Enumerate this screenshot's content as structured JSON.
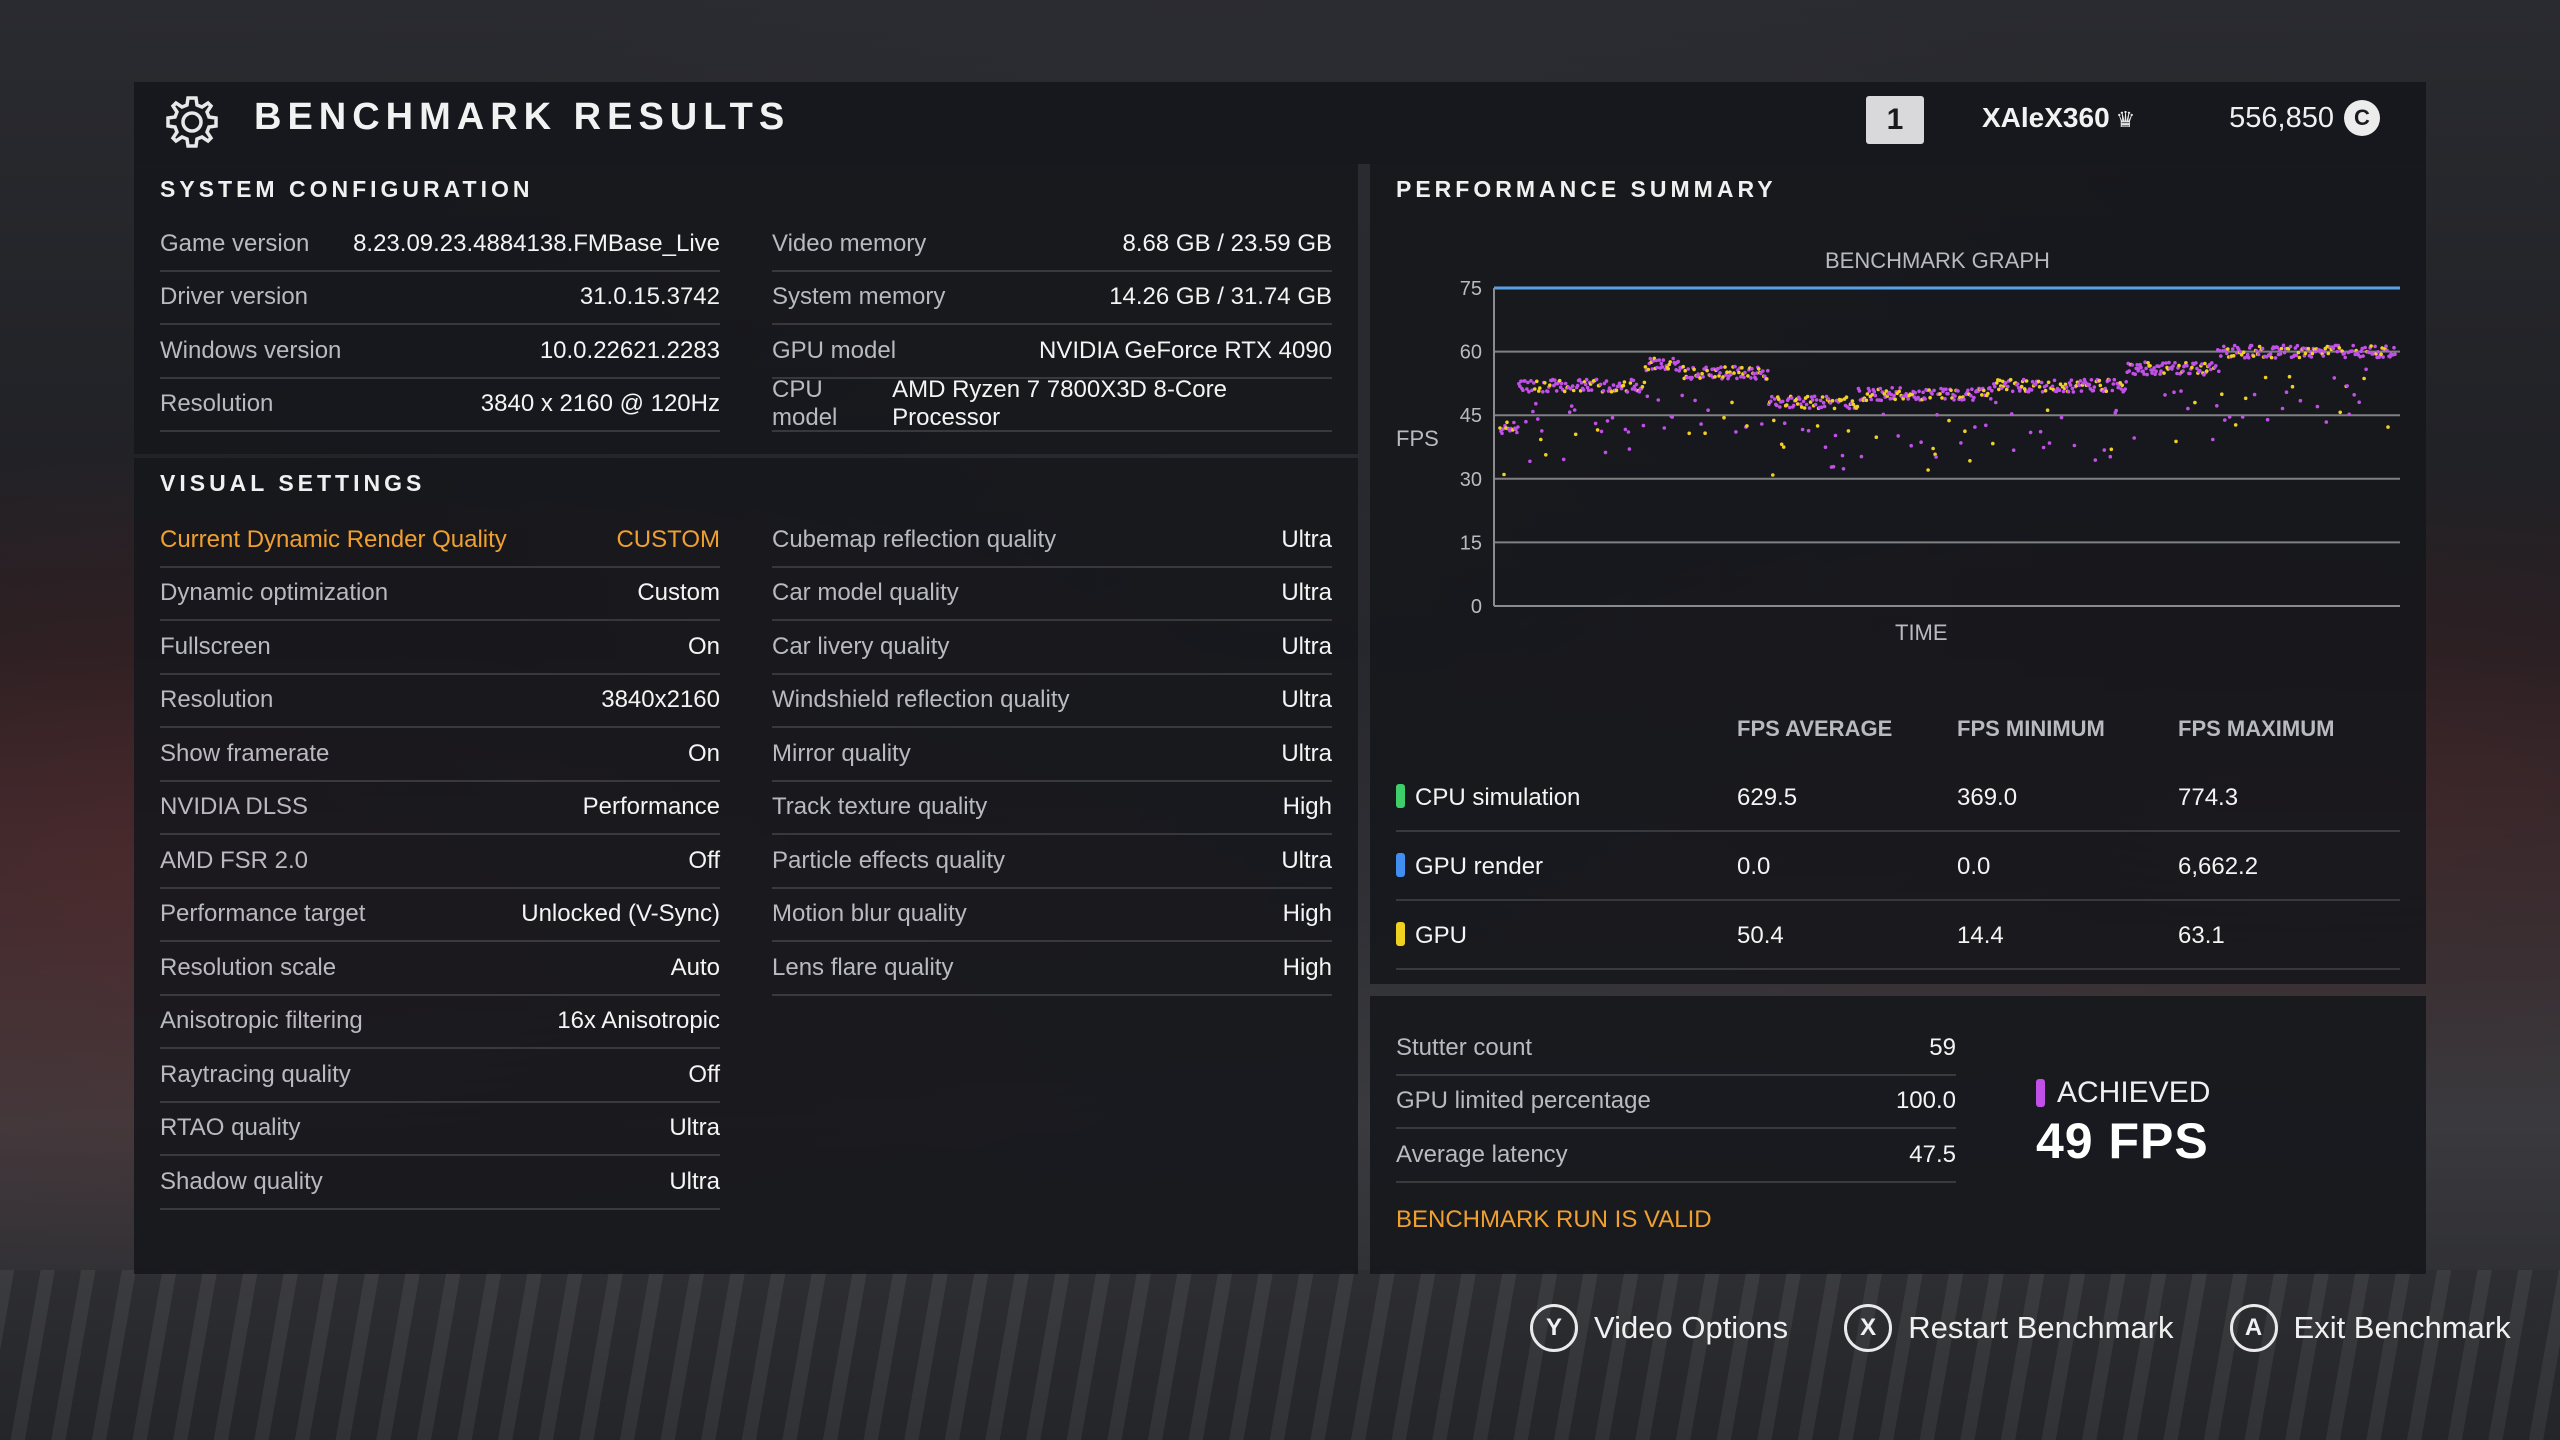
{
  "header": {
    "title": "BENCHMARK RESULTS",
    "rank": "1",
    "username": "XAlеX360",
    "crown_icon": "♛",
    "credits": "556,850",
    "credits_icon": "C"
  },
  "system_config": {
    "title": "SYSTEM CONFIGURATION",
    "left": [
      {
        "label": "Game version",
        "value": "8.23.09.23.4884138.FMBase_Live"
      },
      {
        "label": "Driver version",
        "value": "31.0.15.3742"
      },
      {
        "label": "Windows version",
        "value": "10.0.22621.2283"
      },
      {
        "label": "Resolution",
        "value": "3840 x 2160 @ 120Hz"
      }
    ],
    "right": [
      {
        "label": "Video memory",
        "value": "8.68 GB / 23.59 GB"
      },
      {
        "label": "System memory",
        "value": "14.26 GB / 31.74 GB"
      },
      {
        "label": "GPU model",
        "value": "NVIDIA GeForce RTX 4090"
      },
      {
        "label": "CPU model",
        "value": "AMD Ryzen 7 7800X3D 8-Core Processor"
      }
    ]
  },
  "visual_settings": {
    "title": "VISUAL SETTINGS",
    "left": [
      {
        "label": "Current Dynamic Render Quality",
        "value": "CUSTOM"
      },
      {
        "label": "Dynamic optimization",
        "value": "Custom"
      },
      {
        "label": "Fullscreen",
        "value": "On"
      },
      {
        "label": "Resolution",
        "value": "3840x2160"
      },
      {
        "label": "Show framerate",
        "value": "On"
      },
      {
        "label": "NVIDIA DLSS",
        "value": "Performance"
      },
      {
        "label": "AMD FSR 2.0",
        "value": "Off"
      },
      {
        "label": "Performance target",
        "value": "Unlocked (V-Sync)"
      },
      {
        "label": "Resolution scale",
        "value": "Auto"
      },
      {
        "label": "Anisotropic filtering",
        "value": "16x Anisotropic"
      },
      {
        "label": "Raytracing quality",
        "value": "Off"
      },
      {
        "label": "RTAO quality",
        "value": "Ultra"
      },
      {
        "label": "Shadow quality",
        "value": "Ultra"
      }
    ],
    "right": [
      {
        "label": "Cubemap reflection quality",
        "value": "Ultra"
      },
      {
        "label": "Car model quality",
        "value": "Ultra"
      },
      {
        "label": "Car livery quality",
        "value": "Ultra"
      },
      {
        "label": "Windshield reflection quality",
        "value": "Ultra"
      },
      {
        "label": "Mirror quality",
        "value": "Ultra"
      },
      {
        "label": "Track texture quality",
        "value": "High"
      },
      {
        "label": "Particle effects quality",
        "value": "Ultra"
      },
      {
        "label": "Motion blur quality",
        "value": "High"
      },
      {
        "label": "Lens flare quality",
        "value": "High"
      }
    ]
  },
  "performance": {
    "title": "PERFORMANCE SUMMARY",
    "graph_title": "BENCHMARK GRAPH",
    "y_label": "FPS",
    "x_label": "TIME",
    "y_ticks": [
      "75",
      "60",
      "45",
      "30",
      "15",
      "0"
    ],
    "table_headers": [
      "FPS AVERAGE",
      "FPS MINIMUM",
      "FPS MAXIMUM"
    ],
    "rows": [
      {
        "name": "CPU simulation",
        "color": "#3ecf6a",
        "avg": "629.5",
        "min": "369.0",
        "max": "774.3"
      },
      {
        "name": "GPU render",
        "color": "#3f8ef0",
        "avg": "0.0",
        "min": "0.0",
        "max": "6,662.2"
      },
      {
        "name": "GPU",
        "color": "#f0d020",
        "avg": "50.4",
        "min": "14.4",
        "max": "63.1"
      }
    ]
  },
  "stats": {
    "rows": [
      {
        "label": "Stutter count",
        "value": "59"
      },
      {
        "label": "GPU limited percentage",
        "value": "100.0"
      },
      {
        "label": "Average latency",
        "value": "47.5"
      }
    ],
    "valid_text": "BENCHMARK RUN IS VALID",
    "achieved_label": "ACHIEVED",
    "achieved_value": "49 FPS"
  },
  "footer": [
    {
      "key": "Y",
      "label": "Video Options"
    },
    {
      "key": "X",
      "label": "Restart Benchmark"
    },
    {
      "key": "A",
      "label": "Exit Benchmark"
    }
  ],
  "colors": {
    "accent_orange": "#f0a030",
    "series_main": "#c050e8",
    "series_secondary": "#f0d020",
    "series_line_top": "#5aa0e6"
  },
  "icons": {
    "settings": "gear-icon",
    "credits": "credits-icon",
    "crown": "crown-icon"
  }
}
